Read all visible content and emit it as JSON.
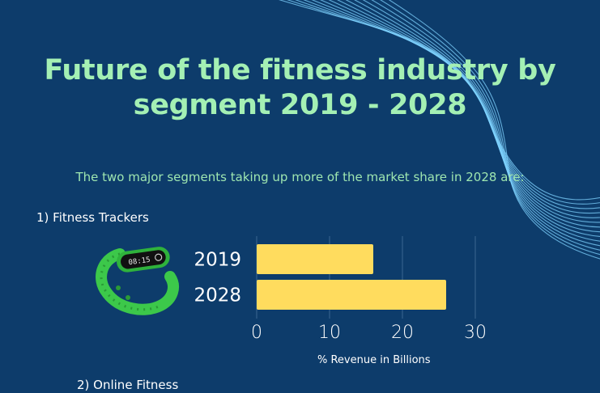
{
  "header": {
    "title_line1": "Future of the fitness industry by",
    "title_line2": "segment 2019 - 2028",
    "subtitle": "The two major segments taking up more of the market share in 2028 are:"
  },
  "segments": {
    "first": "1) Fitness Trackers",
    "second": "2) Online Fitness"
  },
  "tracker_screen_text": "08:15",
  "colors": {
    "background": "#0d3c6b",
    "title": "#a4f0b4",
    "bar": "#ffdc5e",
    "waves": "#7fd3ff",
    "tracker_band": "#3cc84a"
  },
  "chart_data": {
    "type": "bar",
    "orientation": "horizontal",
    "categories": [
      "2019",
      "2028"
    ],
    "values": [
      16,
      26
    ],
    "xlabel": "% Revenue in Billions",
    "ylabel": "",
    "xlim": [
      0,
      30
    ],
    "xticks": [
      "0",
      "10",
      "20",
      "30"
    ],
    "grid": true
  }
}
